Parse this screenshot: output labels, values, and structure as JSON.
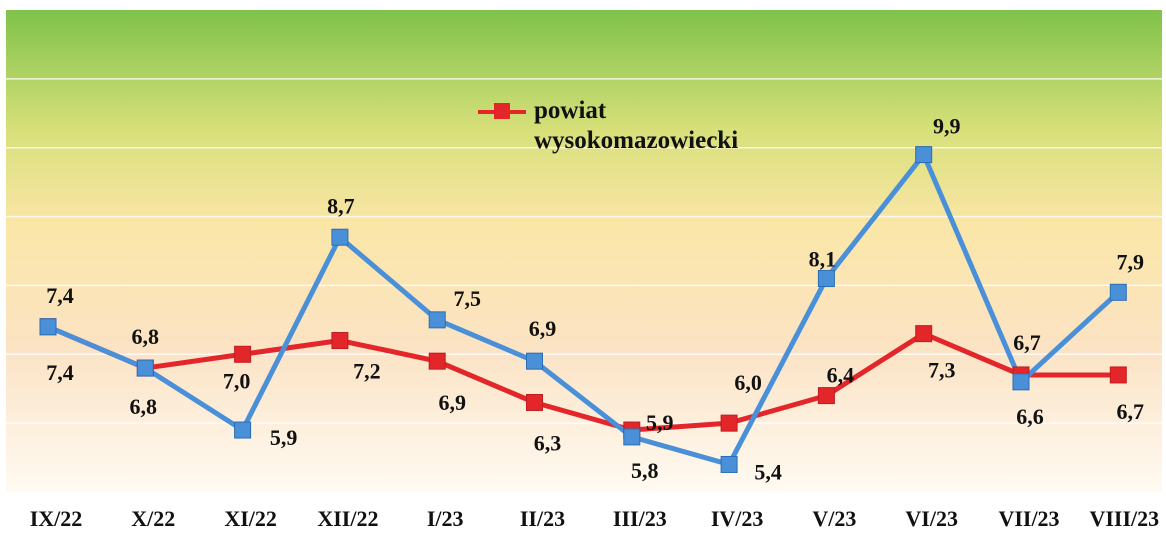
{
  "chart_data": {
    "type": "line",
    "categories": [
      "IX/22",
      "X/22",
      "XI/22",
      "XII/22",
      "I/23",
      "II/23",
      "III/23",
      "IV/23",
      "V/23",
      "VI/23",
      "VII/23",
      "VIII/23"
    ],
    "series": [
      {
        "name": "powiat wysokomazowiecki",
        "color": "#e3262a",
        "values": [
          7.4,
          6.8,
          7.0,
          7.2,
          6.9,
          6.3,
          5.9,
          6.0,
          6.4,
          7.3,
          6.7,
          6.7
        ],
        "value_labels": [
          "7,4",
          "6,8",
          "7,0",
          "7,2",
          "6,9",
          "6,3",
          "5,9",
          "6,0",
          "6,4",
          "7,3",
          "6,7",
          "6,7"
        ]
      },
      {
        "color": "#4a90d9",
        "values": [
          7.4,
          6.8,
          5.9,
          8.7,
          7.5,
          6.9,
          5.8,
          5.4,
          8.1,
          9.9,
          6.6,
          7.9
        ],
        "value_labels": [
          "7,4",
          "6,8",
          "5,9",
          "8,7",
          "7,5",
          "6,9",
          "5,8",
          "5,4",
          "8,1",
          "9,9",
          "6,6",
          "7,9"
        ]
      }
    ],
    "ylim": [
      5,
      12
    ],
    "yticks": [
      6,
      7,
      8,
      9,
      10,
      11
    ],
    "grid": true,
    "legend": "top"
  }
}
